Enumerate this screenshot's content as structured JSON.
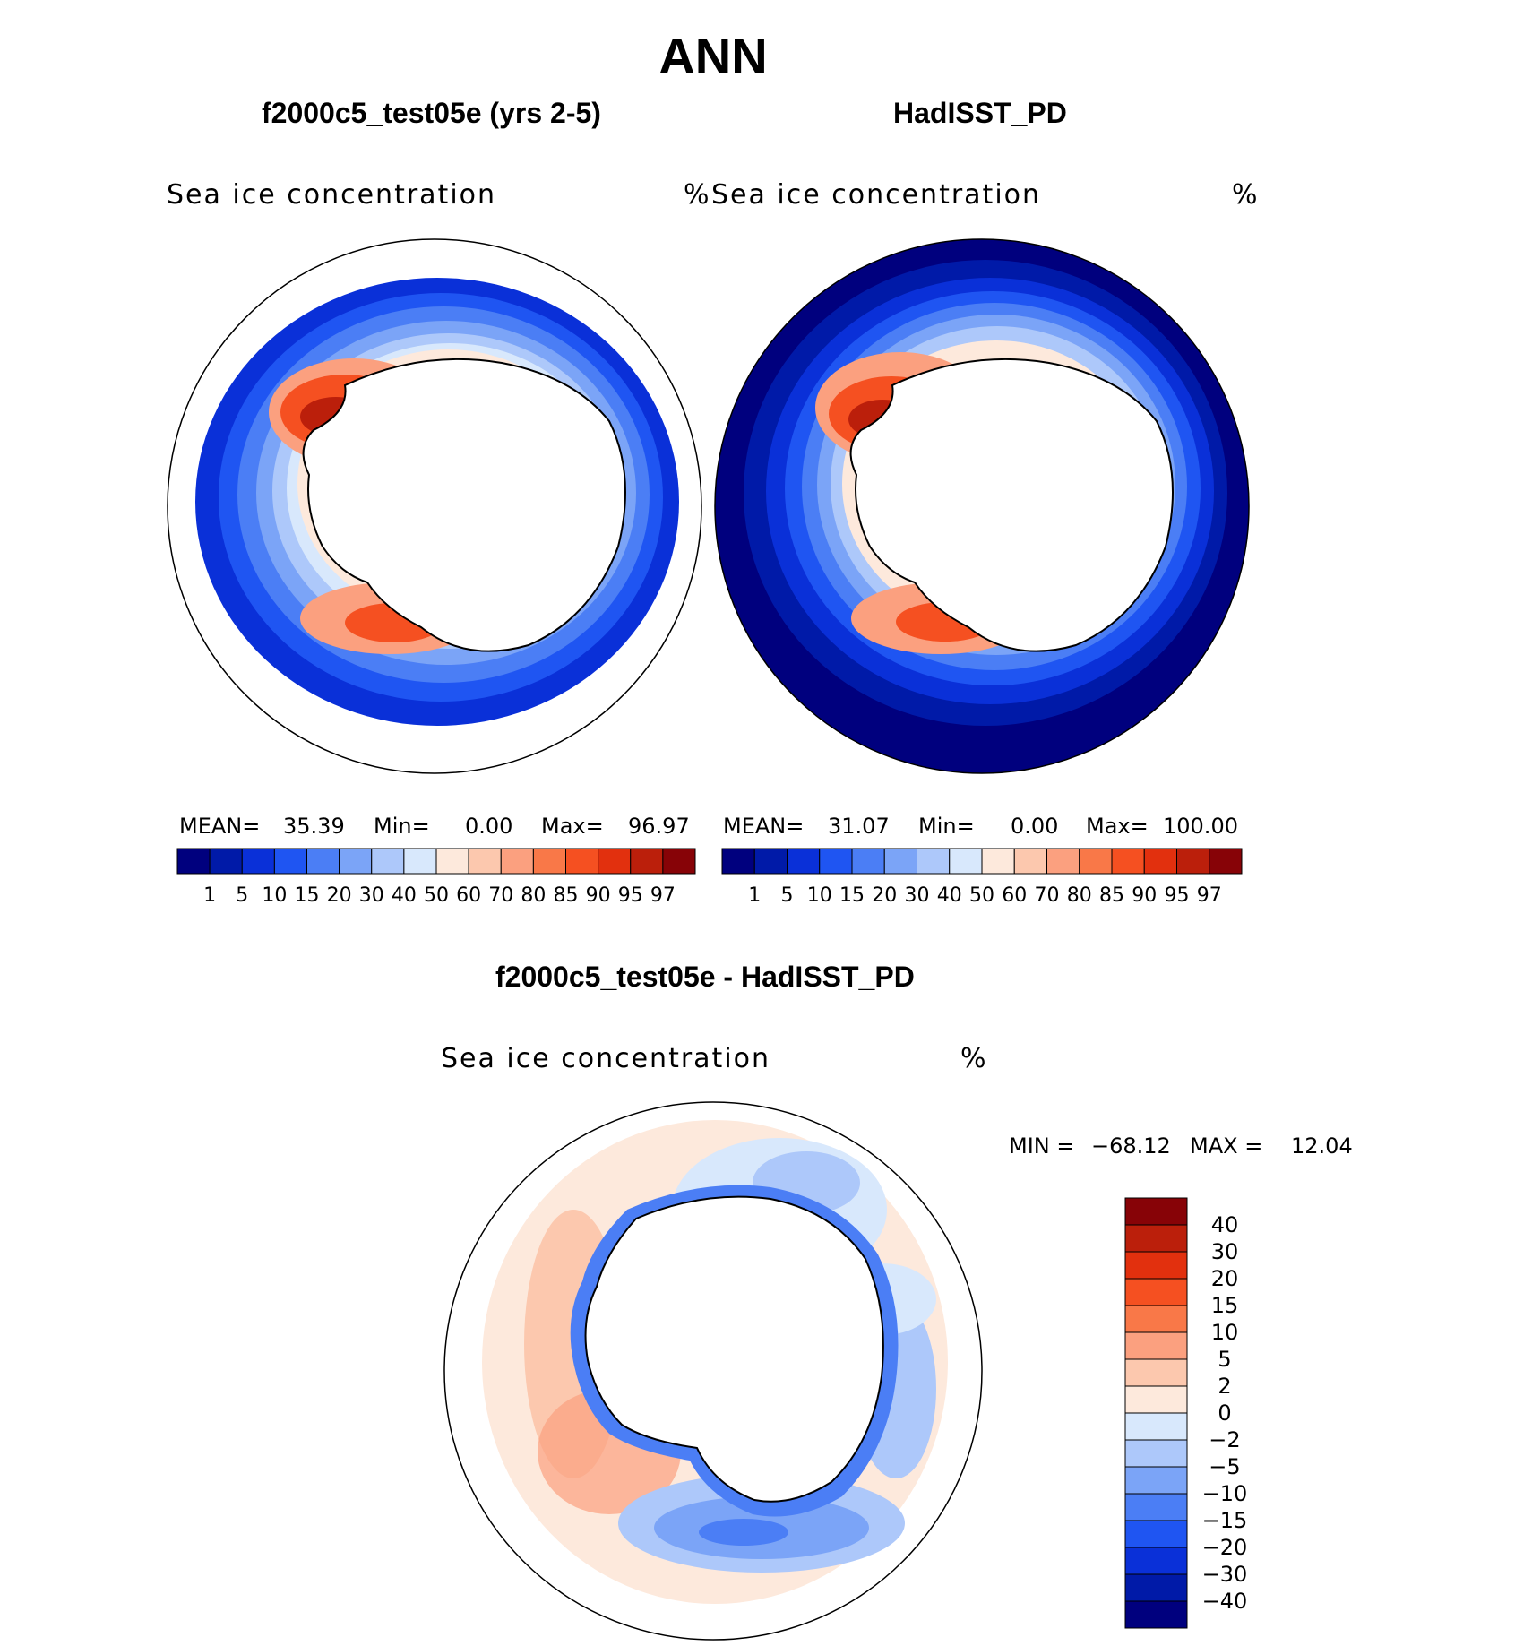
{
  "title": "ANN",
  "panels": [
    {
      "id": "model",
      "case_title": "f2000c5_test05e (yrs 2-5)",
      "variable": "Sea ice concentration",
      "units": "%",
      "stats": {
        "mean_label": "MEAN=",
        "mean": "35.39",
        "min_label": "Min=",
        "min": "0.00",
        "max_label": "Max=",
        "max": "96.97"
      }
    },
    {
      "id": "obs",
      "case_title": "HadISST_PD",
      "variable": "Sea ice concentration",
      "units": "%",
      "stats": {
        "mean_label": "MEAN=",
        "mean": "31.07",
        "min_label": "Min=",
        "min": "0.00",
        "max_label": "Max=",
        "max": "100.00"
      }
    }
  ],
  "diff_panel": {
    "case_title": "f2000c5_test05e - HadISST_PD",
    "variable": "Sea ice concentration",
    "units": "%",
    "minmax": {
      "min_label": "MIN =",
      "min": "−68.12",
      "max_label": "MAX =",
      "max": "12.04"
    }
  },
  "colorbar_abs": {
    "levels": [
      "1",
      "5",
      "10",
      "15",
      "20",
      "30",
      "40",
      "50",
      "60",
      "70",
      "80",
      "85",
      "90",
      "95",
      "97"
    ],
    "colors": [
      "#00007e",
      "#001aa8",
      "#0a30d8",
      "#1f55f2",
      "#4b7ef5",
      "#7ba4f7",
      "#adc8fa",
      "#d8e8fc",
      "#fde9dc",
      "#fcc8ae",
      "#fba07f",
      "#f97848",
      "#f55021",
      "#e2300e",
      "#bb1f0b",
      "#870307"
    ]
  },
  "colorbar_diff": {
    "levels": [
      "40",
      "30",
      "20",
      "15",
      "10",
      "5",
      "2",
      "0",
      "−2",
      "−5",
      "−10",
      "−15",
      "−20",
      "−30",
      "−40"
    ],
    "colors": [
      "#870307",
      "#bb1f0b",
      "#e2300e",
      "#f55021",
      "#f97848",
      "#fba07f",
      "#fcc8ae",
      "#fde9dc",
      "#d8e8fc",
      "#adc8fa",
      "#7ba4f7",
      "#4b7ef5",
      "#1f55f2",
      "#0a30d8",
      "#001aa8",
      "#00007e"
    ]
  }
}
